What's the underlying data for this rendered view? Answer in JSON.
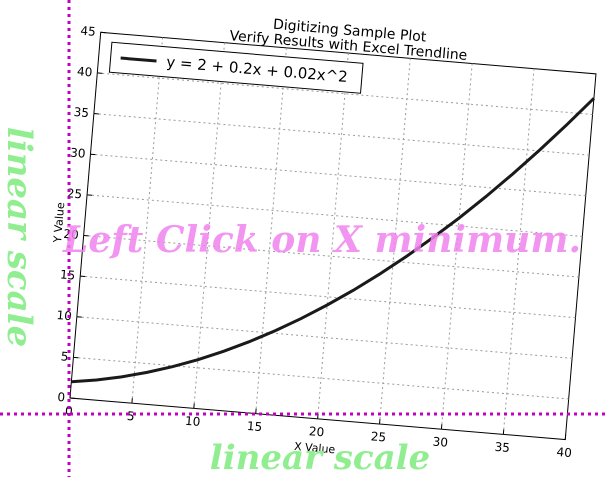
{
  "chart_data": {
    "type": "line",
    "title": "Digitizing Sample Plot",
    "subtitle": "Verify Results with Excel Trendline",
    "xlabel": "X Value",
    "ylabel": "Y Value",
    "xlim": [
      0,
      40
    ],
    "ylim": [
      0,
      45
    ],
    "xticks": [
      "0",
      "5",
      "10",
      "15",
      "20",
      "25",
      "30",
      "35",
      "40"
    ],
    "yticks": [
      "0",
      "5",
      "10",
      "15",
      "20",
      "25",
      "30",
      "35",
      "40",
      "45"
    ],
    "grid": true,
    "legend_position": "top-left",
    "series": [
      {
        "name": "y = 2 + 0.2x + 0.02x^2",
        "color": "#1a1a1a",
        "x": [
          0,
          2,
          4,
          6,
          8,
          10,
          12,
          14,
          16,
          18,
          20,
          22,
          24,
          26,
          28,
          30,
          32,
          34,
          36,
          38,
          40
        ],
        "y": [
          2.0,
          2.48,
          3.12,
          3.92,
          4.88,
          6.0,
          7.28,
          8.72,
          10.32,
          12.08,
          14.0,
          16.08,
          18.32,
          20.72,
          23.28,
          26.0,
          28.88,
          31.92,
          35.12,
          38.48,
          42.0
        ]
      }
    ]
  },
  "overlay": {
    "instruction": "Left Click on X minimum.",
    "x_scale_label": "linear scale",
    "y_scale_label": "linear scale",
    "instruction_color": "#ee82ee",
    "scale_label_color": "#90ee90",
    "guide_color": "#c000c0"
  }
}
